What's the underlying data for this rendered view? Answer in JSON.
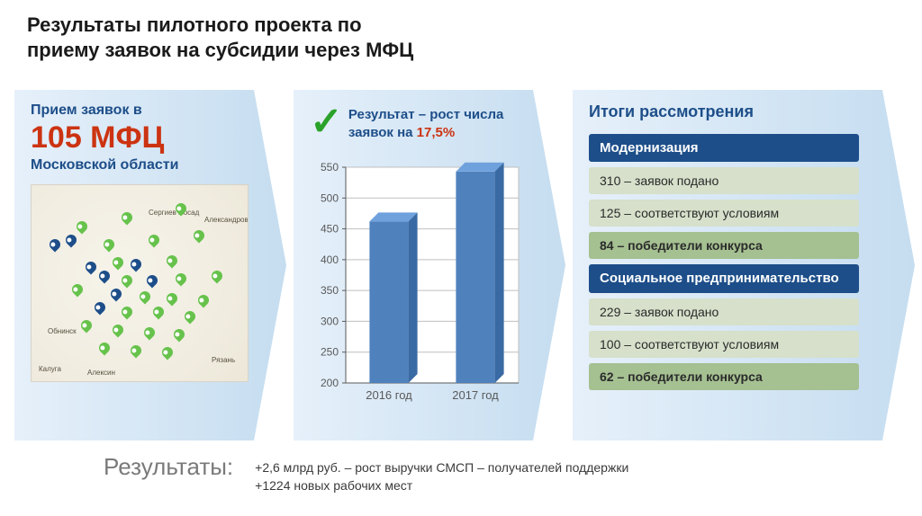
{
  "title_line1": "Результаты  пилотного проекта по",
  "title_line2": "приему заявок на субсидии через МФЦ",
  "panel1": {
    "line1": "Прием заявок в",
    "line2": "105 МФЦ",
    "line3": "Московской области",
    "city_labels": [
      "Сергиев Посад",
      "Александров",
      "Обнинск",
      "Калуга",
      "Алексин",
      "Рязань"
    ],
    "pin_color_green": "#66c24b",
    "pin_color_blue": "#1d4e89"
  },
  "panel2": {
    "checkmark": "✓",
    "result_pre": "Результат – рост числа заявок на ",
    "result_highlight": "17,5%",
    "chart": {
      "type": "bar",
      "categories": [
        "2016 год",
        "2017 год"
      ],
      "values": [
        462,
        543
      ],
      "bar_fill": "#4f81bd",
      "bar_top": "#6fa1dd",
      "bar_side": "#3a6aa3",
      "ylim_min": 200,
      "ylim_max": 550,
      "ytick_step": 50,
      "ticks": [
        200,
        250,
        300,
        350,
        400,
        450,
        500,
        550
      ],
      "grid_color": "#bfbfbf",
      "axis_color": "#595959",
      "plot_bg": "#ffffff",
      "tick_font_size": 12,
      "bar_width_ratio": 0.45
    }
  },
  "panel3": {
    "title": "Итоги рассмотрения",
    "group1_head": "Модернизация",
    "group1_r1": "310 – заявок подано",
    "group1_r2": "125 – соответствуют условиям",
    "group1_r3": "84  – победители конкурса",
    "group2_head": "Социальное предпринимательство",
    "group2_r1": "229 – заявок подано",
    "group2_r2": "100 – соответствуют условиям",
    "group2_r3": "62 – победители конкурса",
    "band_head_bg": "#1d4e89",
    "band_light_bg": "#d6e0ca",
    "band_win_bg": "#a5c091"
  },
  "footer": {
    "label": "Результаты:",
    "line1": "+2,6 млрд руб. – рост выручки СМСП – получателей поддержки",
    "line2": "+1224 новых рабочих мест"
  }
}
